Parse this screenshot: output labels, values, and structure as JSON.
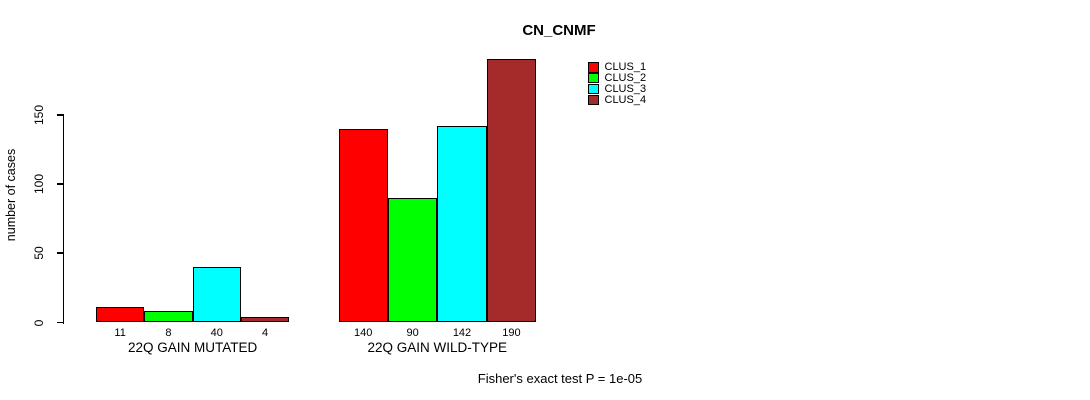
{
  "chart_data": {
    "type": "bar",
    "title": "CN_CNMF",
    "ylabel": "number of cases",
    "xlabel": "",
    "yticks": [
      0,
      50,
      100,
      150
    ],
    "ylim": [
      0,
      190
    ],
    "grid": false,
    "legend_position": "top-right",
    "categories": [
      "22Q GAIN MUTATED",
      "22Q GAIN WILD-TYPE"
    ],
    "series": [
      {
        "name": "CLUS_1",
        "color": "#ff0000",
        "values": [
          11,
          140
        ]
      },
      {
        "name": "CLUS_2",
        "color": "#00ff00",
        "values": [
          8,
          90
        ]
      },
      {
        "name": "CLUS_3",
        "color": "#00ffff",
        "values": [
          40,
          142
        ]
      },
      {
        "name": "CLUS_4",
        "color": "#a52a2a",
        "values": [
          4,
          190
        ]
      }
    ],
    "bar_value_labels": [
      [
        11,
        8,
        40,
        4
      ],
      [
        140,
        90,
        142,
        190
      ]
    ],
    "annotation": "Fisher's exact test P = 1e-05"
  }
}
